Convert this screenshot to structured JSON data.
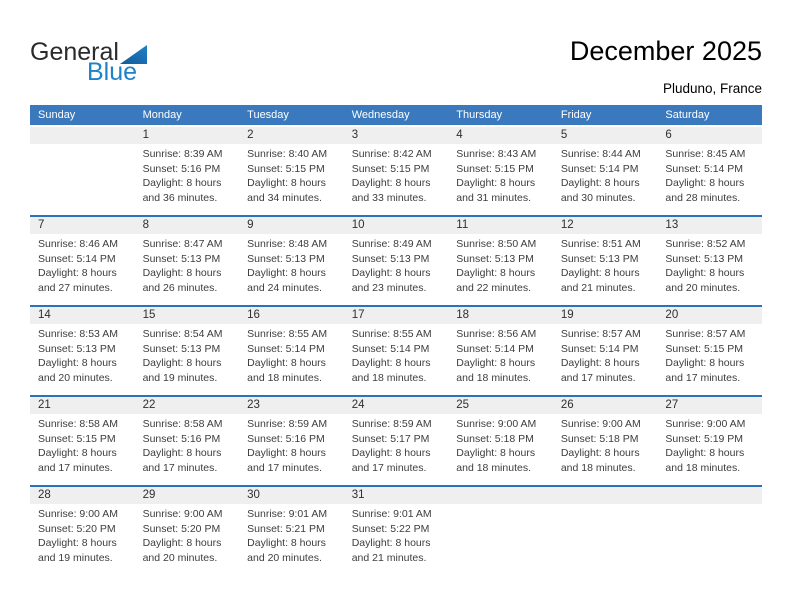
{
  "logo": {
    "part1": "General",
    "part2": "Blue"
  },
  "header": {
    "title": "December 2025",
    "subtitle": "Pluduno, France"
  },
  "colors": {
    "header_bar_blue": "#3a79bd",
    "separator_blue": "#2c72b8",
    "number_band_gray": "#efefef",
    "logo_blue": "#1e82c8",
    "logo_triangle_dark": "#135a96"
  },
  "calendar": {
    "day_headers": [
      "Sunday",
      "Monday",
      "Tuesday",
      "Wednesday",
      "Thursday",
      "Friday",
      "Saturday"
    ],
    "weeks": [
      {
        "days": [
          null,
          {
            "day": "1",
            "sunrise": "Sunrise: 8:39 AM",
            "sunset": "Sunset: 5:16 PM",
            "daylight_line1": "Daylight: 8 hours",
            "daylight_line2": "and 36 minutes."
          },
          {
            "day": "2",
            "sunrise": "Sunrise: 8:40 AM",
            "sunset": "Sunset: 5:15 PM",
            "daylight_line1": "Daylight: 8 hours",
            "daylight_line2": "and 34 minutes."
          },
          {
            "day": "3",
            "sunrise": "Sunrise: 8:42 AM",
            "sunset": "Sunset: 5:15 PM",
            "daylight_line1": "Daylight: 8 hours",
            "daylight_line2": "and 33 minutes."
          },
          {
            "day": "4",
            "sunrise": "Sunrise: 8:43 AM",
            "sunset": "Sunset: 5:15 PM",
            "daylight_line1": "Daylight: 8 hours",
            "daylight_line2": "and 31 minutes."
          },
          {
            "day": "5",
            "sunrise": "Sunrise: 8:44 AM",
            "sunset": "Sunset: 5:14 PM",
            "daylight_line1": "Daylight: 8 hours",
            "daylight_line2": "and 30 minutes."
          },
          {
            "day": "6",
            "sunrise": "Sunrise: 8:45 AM",
            "sunset": "Sunset: 5:14 PM",
            "daylight_line1": "Daylight: 8 hours",
            "daylight_line2": "and 28 minutes."
          }
        ]
      },
      {
        "days": [
          {
            "day": "7",
            "sunrise": "Sunrise: 8:46 AM",
            "sunset": "Sunset: 5:14 PM",
            "daylight_line1": "Daylight: 8 hours",
            "daylight_line2": "and 27 minutes."
          },
          {
            "day": "8",
            "sunrise": "Sunrise: 8:47 AM",
            "sunset": "Sunset: 5:13 PM",
            "daylight_line1": "Daylight: 8 hours",
            "daylight_line2": "and 26 minutes."
          },
          {
            "day": "9",
            "sunrise": "Sunrise: 8:48 AM",
            "sunset": "Sunset: 5:13 PM",
            "daylight_line1": "Daylight: 8 hours",
            "daylight_line2": "and 24 minutes."
          },
          {
            "day": "10",
            "sunrise": "Sunrise: 8:49 AM",
            "sunset": "Sunset: 5:13 PM",
            "daylight_line1": "Daylight: 8 hours",
            "daylight_line2": "and 23 minutes."
          },
          {
            "day": "11",
            "sunrise": "Sunrise: 8:50 AM",
            "sunset": "Sunset: 5:13 PM",
            "daylight_line1": "Daylight: 8 hours",
            "daylight_line2": "and 22 minutes."
          },
          {
            "day": "12",
            "sunrise": "Sunrise: 8:51 AM",
            "sunset": "Sunset: 5:13 PM",
            "daylight_line1": "Daylight: 8 hours",
            "daylight_line2": "and 21 minutes."
          },
          {
            "day": "13",
            "sunrise": "Sunrise: 8:52 AM",
            "sunset": "Sunset: 5:13 PM",
            "daylight_line1": "Daylight: 8 hours",
            "daylight_line2": "and 20 minutes."
          }
        ]
      },
      {
        "days": [
          {
            "day": "14",
            "sunrise": "Sunrise: 8:53 AM",
            "sunset": "Sunset: 5:13 PM",
            "daylight_line1": "Daylight: 8 hours",
            "daylight_line2": "and 20 minutes."
          },
          {
            "day": "15",
            "sunrise": "Sunrise: 8:54 AM",
            "sunset": "Sunset: 5:13 PM",
            "daylight_line1": "Daylight: 8 hours",
            "daylight_line2": "and 19 minutes."
          },
          {
            "day": "16",
            "sunrise": "Sunrise: 8:55 AM",
            "sunset": "Sunset: 5:14 PM",
            "daylight_line1": "Daylight: 8 hours",
            "daylight_line2": "and 18 minutes."
          },
          {
            "day": "17",
            "sunrise": "Sunrise: 8:55 AM",
            "sunset": "Sunset: 5:14 PM",
            "daylight_line1": "Daylight: 8 hours",
            "daylight_line2": "and 18 minutes."
          },
          {
            "day": "18",
            "sunrise": "Sunrise: 8:56 AM",
            "sunset": "Sunset: 5:14 PM",
            "daylight_line1": "Daylight: 8 hours",
            "daylight_line2": "and 18 minutes."
          },
          {
            "day": "19",
            "sunrise": "Sunrise: 8:57 AM",
            "sunset": "Sunset: 5:14 PM",
            "daylight_line1": "Daylight: 8 hours",
            "daylight_line2": "and 17 minutes."
          },
          {
            "day": "20",
            "sunrise": "Sunrise: 8:57 AM",
            "sunset": "Sunset: 5:15 PM",
            "daylight_line1": "Daylight: 8 hours",
            "daylight_line2": "and 17 minutes."
          }
        ]
      },
      {
        "days": [
          {
            "day": "21",
            "sunrise": "Sunrise: 8:58 AM",
            "sunset": "Sunset: 5:15 PM",
            "daylight_line1": "Daylight: 8 hours",
            "daylight_line2": "and 17 minutes."
          },
          {
            "day": "22",
            "sunrise": "Sunrise: 8:58 AM",
            "sunset": "Sunset: 5:16 PM",
            "daylight_line1": "Daylight: 8 hours",
            "daylight_line2": "and 17 minutes."
          },
          {
            "day": "23",
            "sunrise": "Sunrise: 8:59 AM",
            "sunset": "Sunset: 5:16 PM",
            "daylight_line1": "Daylight: 8 hours",
            "daylight_line2": "and 17 minutes."
          },
          {
            "day": "24",
            "sunrise": "Sunrise: 8:59 AM",
            "sunset": "Sunset: 5:17 PM",
            "daylight_line1": "Daylight: 8 hours",
            "daylight_line2": "and 17 minutes."
          },
          {
            "day": "25",
            "sunrise": "Sunrise: 9:00 AM",
            "sunset": "Sunset: 5:18 PM",
            "daylight_line1": "Daylight: 8 hours",
            "daylight_line2": "and 18 minutes."
          },
          {
            "day": "26",
            "sunrise": "Sunrise: 9:00 AM",
            "sunset": "Sunset: 5:18 PM",
            "daylight_line1": "Daylight: 8 hours",
            "daylight_line2": "and 18 minutes."
          },
          {
            "day": "27",
            "sunrise": "Sunrise: 9:00 AM",
            "sunset": "Sunset: 5:19 PM",
            "daylight_line1": "Daylight: 8 hours",
            "daylight_line2": "and 18 minutes."
          }
        ]
      },
      {
        "days": [
          {
            "day": "28",
            "sunrise": "Sunrise: 9:00 AM",
            "sunset": "Sunset: 5:20 PM",
            "daylight_line1": "Daylight: 8 hours",
            "daylight_line2": "and 19 minutes."
          },
          {
            "day": "29",
            "sunrise": "Sunrise: 9:00 AM",
            "sunset": "Sunset: 5:20 PM",
            "daylight_line1": "Daylight: 8 hours",
            "daylight_line2": "and 20 minutes."
          },
          {
            "day": "30",
            "sunrise": "Sunrise: 9:01 AM",
            "sunset": "Sunset: 5:21 PM",
            "daylight_line1": "Daylight: 8 hours",
            "daylight_line2": "and 20 minutes."
          },
          {
            "day": "31",
            "sunrise": "Sunrise: 9:01 AM",
            "sunset": "Sunset: 5:22 PM",
            "daylight_line1": "Daylight: 8 hours",
            "daylight_line2": "and 21 minutes."
          },
          null,
          null,
          null
        ]
      }
    ]
  }
}
